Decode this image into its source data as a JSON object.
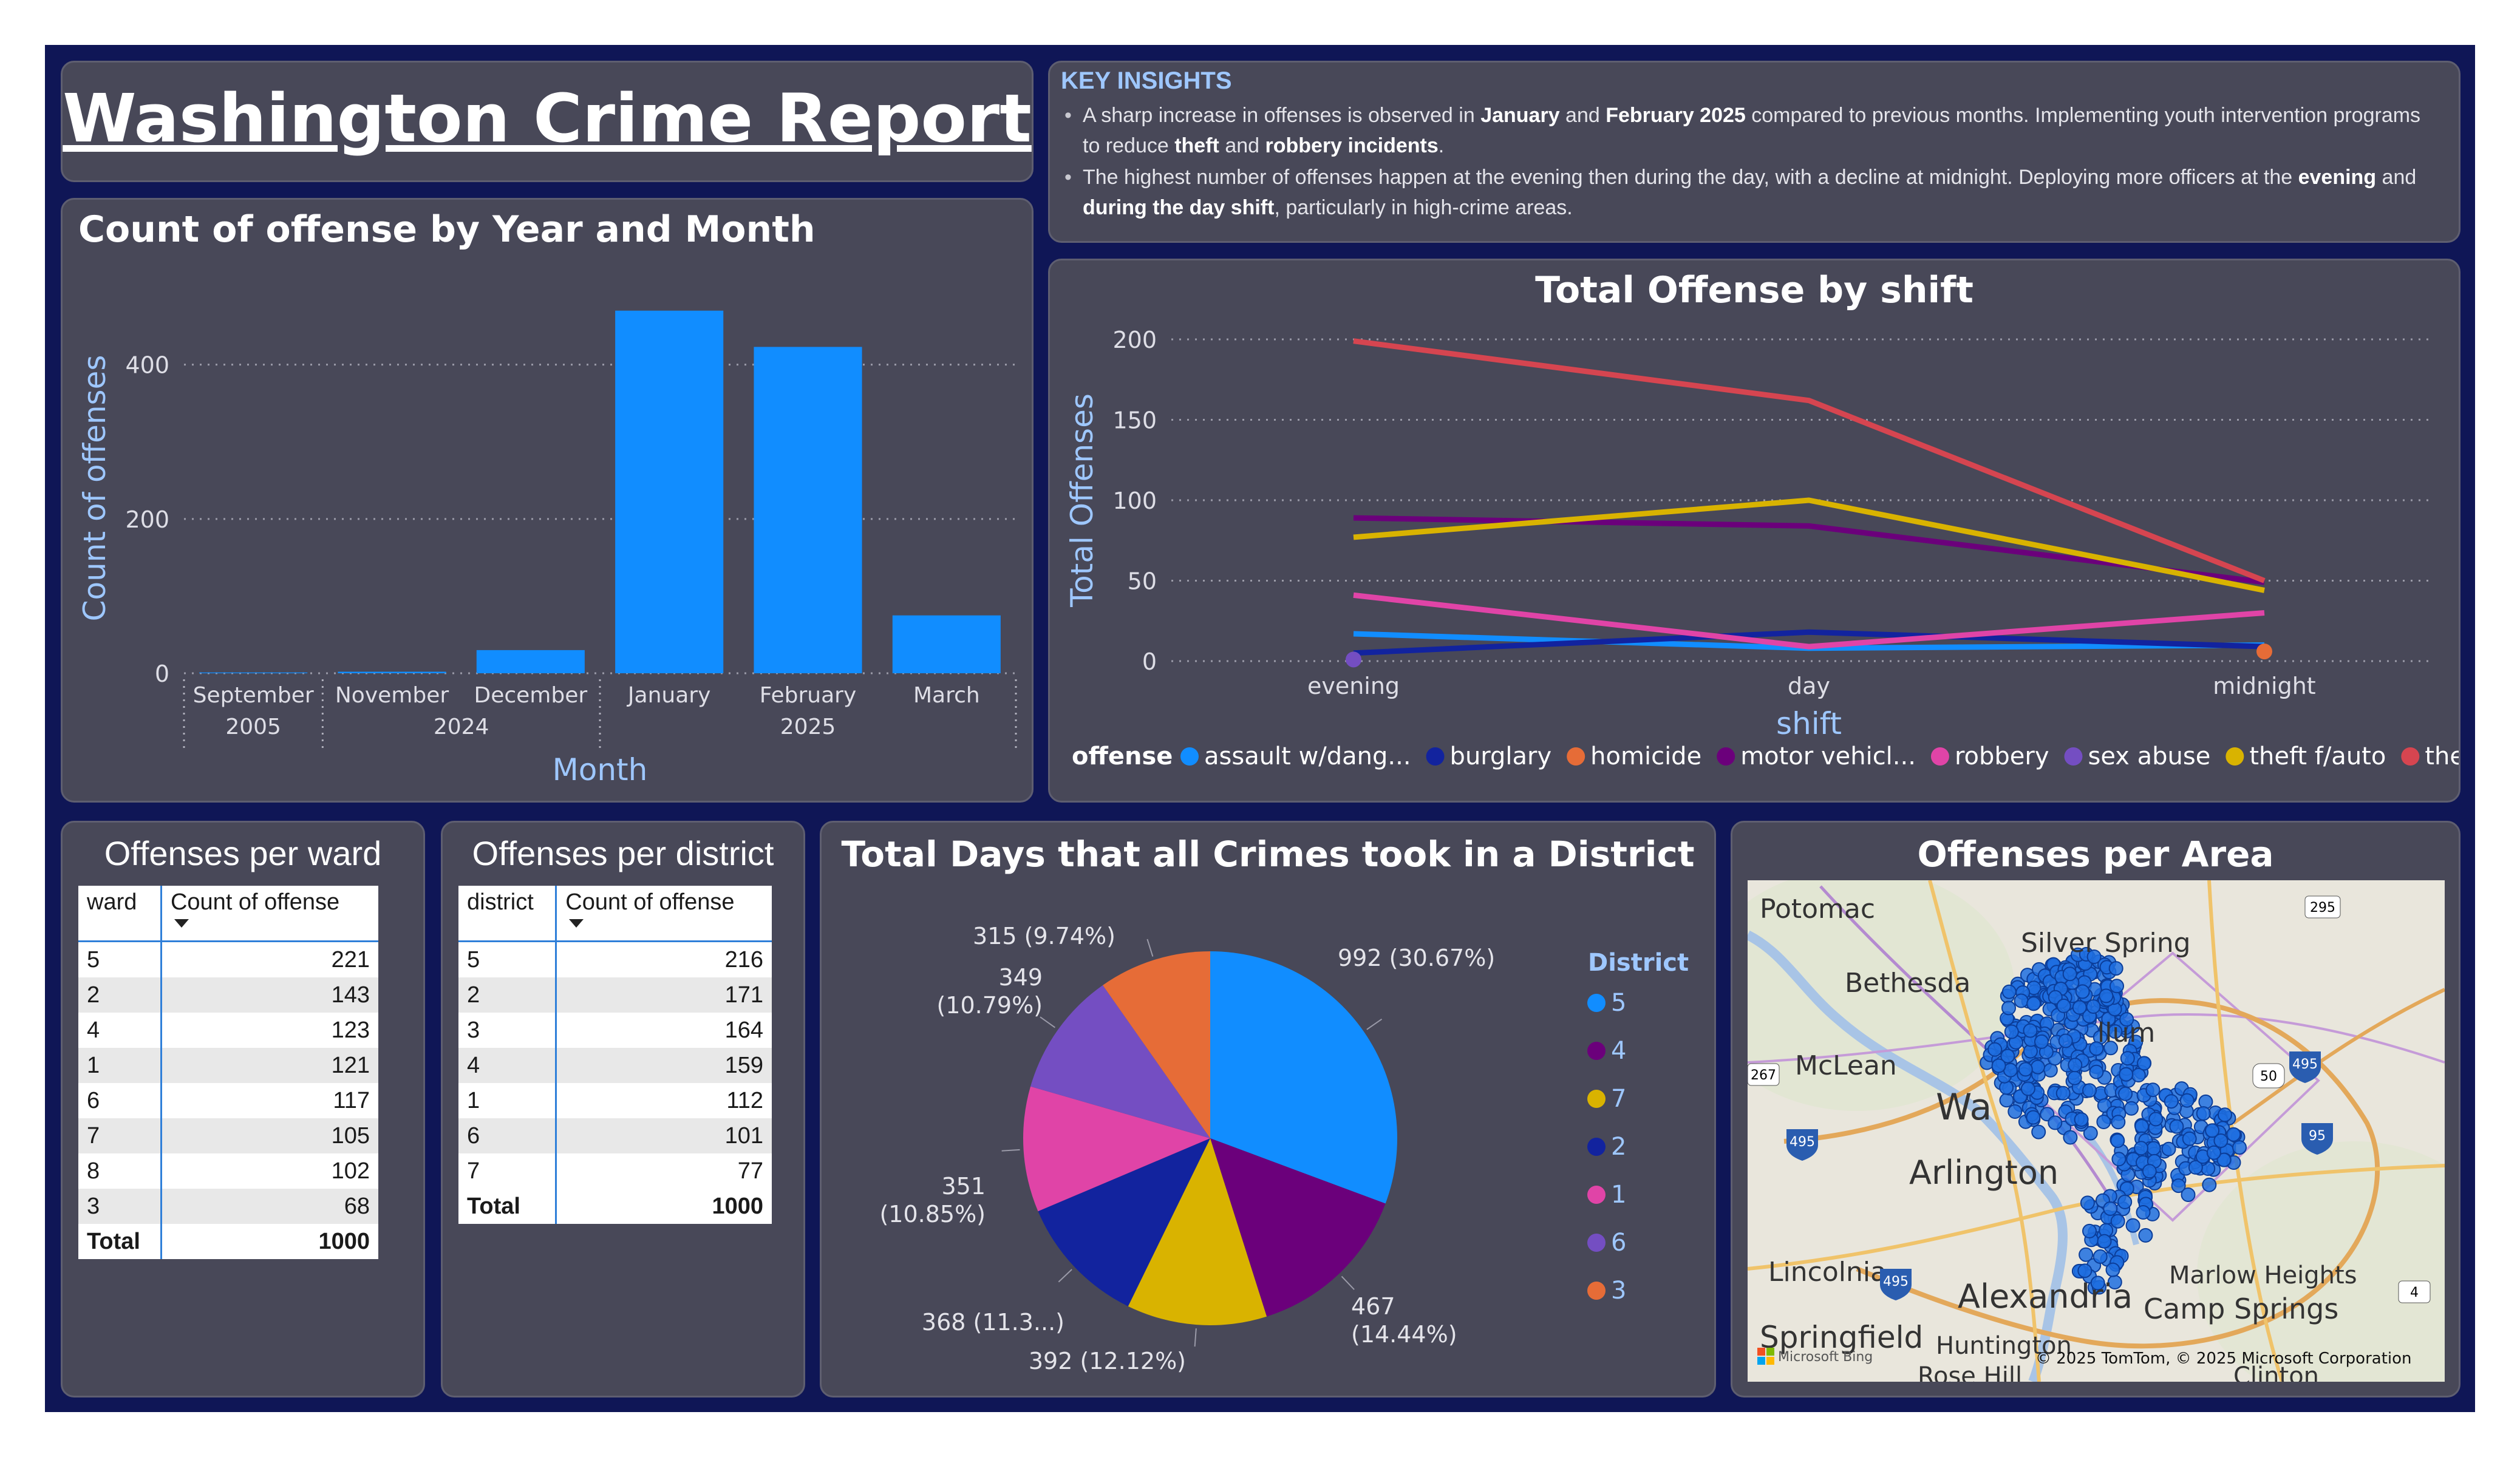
{
  "report_title": "Washington Crime Report",
  "insights": {
    "heading": "KEY INSIGHTS",
    "b1": {
      "t1": "A sharp increase in offenses is observed in ",
      "b1": "January",
      "t2": " and ",
      "b2": "February 2025",
      "t3": " compared to previous months. Implementing youth intervention programs to reduce ",
      "b3": "theft",
      "t4": " and ",
      "b4": "robbery incidents",
      "t5": "."
    },
    "b2": {
      "t1": "The highest number of offenses happen at the evening then during the day, with a decline at midnight. Deploying more officers at the ",
      "b1": "evening",
      "t2": " and ",
      "b2": "during the day shift",
      "t3": ", particularly in high-crime areas."
    }
  },
  "chart_data": [
    {
      "type": "bar",
      "title": "Count of offense by Year and Month",
      "xlabel": "Month",
      "ylabel": "Count of offenses",
      "ylim": [
        0,
        480
      ],
      "yticks": [
        0,
        200,
        400
      ],
      "categories": [
        "September",
        "November",
        "December",
        "January",
        "February",
        "March"
      ],
      "years": [
        "2005",
        "2024",
        "2024",
        "2025",
        "2025",
        "2025"
      ],
      "year_groups": [
        {
          "label": "2005",
          "span": 1
        },
        {
          "label": "2024",
          "span": 2
        },
        {
          "label": "2025",
          "span": 3
        }
      ],
      "values": [
        1,
        2,
        30,
        470,
        423,
        75
      ],
      "color": "#118dff",
      "grid": true
    },
    {
      "type": "line",
      "title": "Total Offense by shift",
      "xlabel": "shift",
      "ylabel": "Total Offenses",
      "ylim": [
        0,
        200
      ],
      "yticks": [
        0,
        50,
        100,
        150,
        200
      ],
      "x": [
        "evening",
        "day",
        "midnight"
      ],
      "legend_title": "offense",
      "legend_position": "bottom",
      "series": [
        {
          "name": "assault w/dang...",
          "color": "#118dff",
          "values": [
            17,
            8,
            10
          ]
        },
        {
          "name": "burglary",
          "color": "#12239e",
          "values": [
            5,
            18,
            9
          ]
        },
        {
          "name": "homicide",
          "color": "#e66c37",
          "values": [
            null,
            null,
            6
          ]
        },
        {
          "name": "motor vehicl...",
          "color": "#6b007b",
          "values": [
            89,
            84,
            49
          ]
        },
        {
          "name": "robbery",
          "color": "#e044a7",
          "values": [
            41,
            9,
            30
          ]
        },
        {
          "name": "sex abuse",
          "color": "#744ec2",
          "values": [
            1,
            null,
            null
          ]
        },
        {
          "name": "theft f/auto",
          "color": "#d9b300",
          "values": [
            77,
            100,
            44
          ]
        },
        {
          "name": "theft/other",
          "color": "#d64550",
          "values": [
            199,
            162,
            50
          ]
        }
      ]
    },
    {
      "type": "pie",
      "title": "Total Days that all Crimes took in a District",
      "legend_title": "District",
      "legend_position": "right",
      "slices": [
        {
          "district": "5",
          "value": 992,
          "label": "992 (30.67%)",
          "color": "#118dff"
        },
        {
          "district": "4",
          "value": 467,
          "label": "467 (14.44%)",
          "color": "#6b007b"
        },
        {
          "district": "7",
          "value": 392,
          "label": "392 (12.12%)",
          "color": "#d9b300"
        },
        {
          "district": "2",
          "value": 368,
          "label": "368 (11.3...)",
          "color": "#12239e"
        },
        {
          "district": "1",
          "value": 351,
          "label": "351 (10.85%)",
          "color": "#e044a7"
        },
        {
          "district": "6",
          "value": 349,
          "label": "349 (10.79%)",
          "color": "#744ec2"
        },
        {
          "district": "3",
          "value": 315,
          "label": "315 (9.74%)",
          "color": "#e66c37"
        }
      ]
    },
    {
      "type": "table",
      "title": "Offenses per ward",
      "columns": [
        "ward",
        "Count of offense"
      ],
      "rows": [
        [
          "5",
          "221"
        ],
        [
          "2",
          "143"
        ],
        [
          "4",
          "123"
        ],
        [
          "1",
          "121"
        ],
        [
          "6",
          "117"
        ],
        [
          "7",
          "105"
        ],
        [
          "8",
          "102"
        ],
        [
          "3",
          "68"
        ]
      ],
      "total": [
        "Total",
        "1000"
      ]
    },
    {
      "type": "table",
      "title": "Offenses per district",
      "columns": [
        "district",
        "Count of offense"
      ],
      "rows": [
        [
          "5",
          "216"
        ],
        [
          "2",
          "171"
        ],
        [
          "3",
          "164"
        ],
        [
          "4",
          "159"
        ],
        [
          "1",
          "112"
        ],
        [
          "6",
          "101"
        ],
        [
          "7",
          "77"
        ]
      ],
      "total": [
        "Total",
        "1000"
      ]
    }
  ],
  "map": {
    "title": "Offenses per Area",
    "place_labels": [
      "Potomac",
      "Silver Spring",
      "Bethesda",
      "McLean",
      "Wa",
      "Arlington",
      "Lincolnia",
      "Alexandria",
      "Marlow Heights",
      "Camp Springs",
      "Springfield",
      "Huntington",
      "Rose Hill",
      "Clinton",
      "llum"
    ],
    "road_shields": [
      "295",
      "267",
      "50",
      "495",
      "495",
      "95",
      "495",
      "4"
    ],
    "point_color": "#1f6fe0",
    "attribution": "© 2025 TomTom, © 2025 Microsoft Corporation",
    "provider": "Microsoft Bing"
  }
}
